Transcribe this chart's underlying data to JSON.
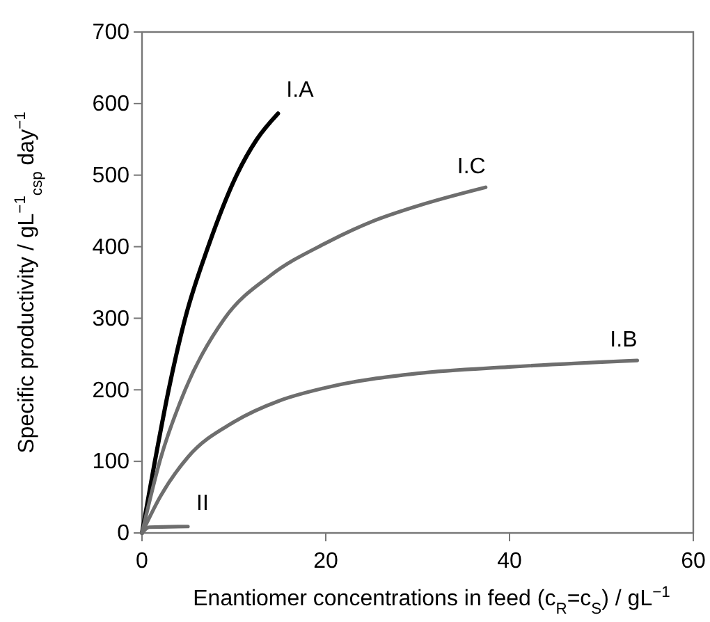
{
  "chart_data": {
    "type": "line",
    "xlabel": "Enantiomer concentrations in feed (c$_{R}$=c$_{S}$) / gL$^{−1}$",
    "ylabel": "Specific productivity / gL$^{−1}$$_{csp}$ day$^{−1}$",
    "xlim": [
      0,
      60
    ],
    "xticks": [
      0,
      20,
      40,
      60
    ],
    "ylim": [
      0,
      700
    ],
    "yticks": [
      0,
      100,
      200,
      300,
      400,
      500,
      600,
      700
    ],
    "grid": false,
    "marker": "none",
    "line_style": "solid",
    "series": [
      {
        "name": "I.A",
        "color": "#000000",
        "x": [
          0,
          1.4,
          2.9,
          4.7,
          7.2,
          10.3,
          12.5,
          14.8
        ],
        "values": [
          0,
          100,
          200,
          300,
          400,
          500,
          550,
          586
        ]
      },
      {
        "name": "I.C",
        "color": "#6e6e6e",
        "x": [
          0,
          2,
          4.7,
          9,
          14,
          20,
          25,
          30,
          37.4
        ],
        "values": [
          0,
          103,
          200,
          300,
          360,
          405,
          435,
          457,
          483
        ]
      },
      {
        "name": "I.B",
        "color": "#6e6e6e",
        "x": [
          0,
          2,
          5,
          10,
          15,
          20,
          30,
          40,
          53.9
        ],
        "values": [
          0,
          51,
          106,
          155,
          185,
          203,
          223,
          232,
          241
        ]
      },
      {
        "name": "II",
        "color": "#6e6e6e",
        "x": [
          0,
          0.8,
          5
        ],
        "values": [
          0,
          8,
          9
        ]
      }
    ]
  }
}
